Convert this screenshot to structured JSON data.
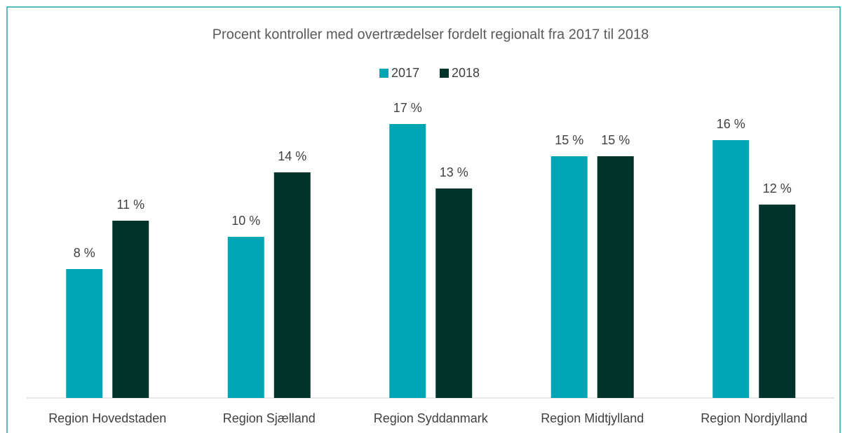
{
  "chart_data": {
    "type": "bar",
    "title": "Procent kontroller med overtrædelser fordelt regionalt fra 2017 til 2018",
    "categories": [
      "Region Hovedstaden",
      "Region Sjælland",
      "Region Syddanmark",
      "Region Midtjylland",
      "Region Nordjylland"
    ],
    "series": [
      {
        "name": "2017",
        "color": "#00a6b4",
        "values": [
          8,
          10,
          17,
          15,
          16
        ],
        "value_labels": [
          "8 %",
          "10 %",
          "17 %",
          "15 %",
          "16 %"
        ]
      },
      {
        "name": "2018",
        "color": "#00332a",
        "values": [
          11,
          14,
          13,
          15,
          12
        ],
        "value_labels": [
          "11 %",
          "14 %",
          "13 %",
          "15 %",
          "12 %"
        ]
      }
    ],
    "legend": "top"
  }
}
